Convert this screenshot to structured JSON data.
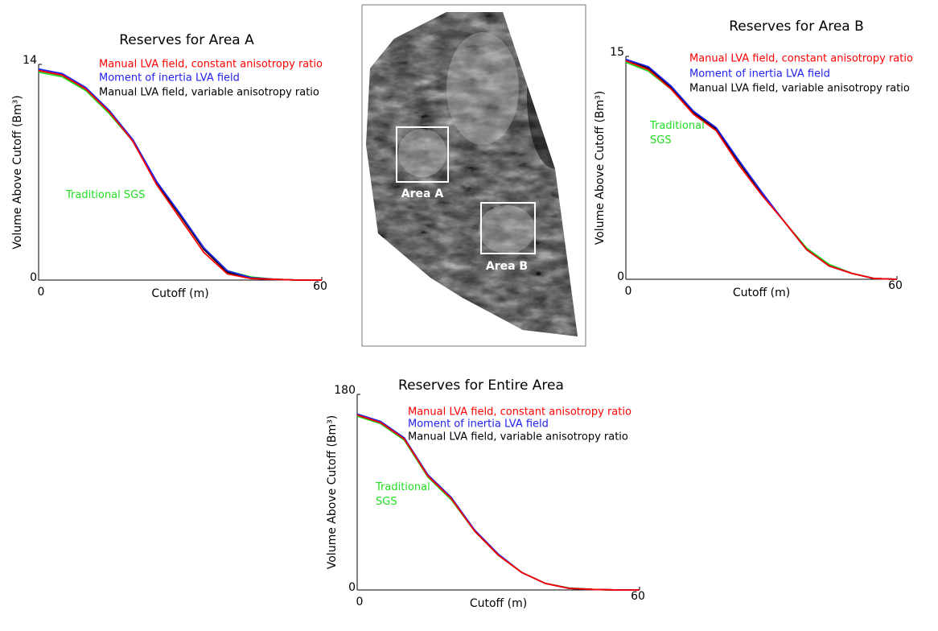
{
  "chart_data": [
    {
      "type": "line",
      "title": "Reserves for Area A",
      "x_label": "Cutoff (m)",
      "y_label": "Volume Above Cutoff (Bm³)",
      "x": [
        0,
        5,
        10,
        15,
        20,
        25,
        30,
        35,
        40,
        45,
        50,
        55,
        60
      ],
      "xlim": [
        0,
        60
      ],
      "xticks": [
        0,
        60
      ],
      "ylim": [
        0,
        14
      ],
      "yticks": [
        0,
        14
      ],
      "series": [
        {
          "name": "Manual LVA field, constant anisotropy ratio",
          "color": "#ff0000",
          "values": [
            13.6,
            13.3,
            12.4,
            10.9,
            9.0,
            6.2,
            4.0,
            1.8,
            0.4,
            0.1,
            0.05,
            0,
            0
          ]
        },
        {
          "name": "Moment of inertia LVA field",
          "color": "#2222ee",
          "values": [
            13.7,
            13.4,
            12.5,
            11.0,
            9.1,
            6.4,
            4.3,
            2.1,
            0.6,
            0.15,
            0.05,
            0,
            0
          ]
        },
        {
          "name": "Manual LVA field, variable anisotropy ratio",
          "color": "#000000",
          "values": [
            13.6,
            13.3,
            12.4,
            11.0,
            9.0,
            6.3,
            4.2,
            2.0,
            0.5,
            0.15,
            0.05,
            0,
            0
          ]
        },
        {
          "name": "Traditional SGS",
          "color": "#22dd22",
          "values": [
            13.5,
            13.2,
            12.3,
            10.8,
            9.0,
            6.3,
            4.2,
            2.1,
            0.6,
            0.2,
            0.05,
            0,
            0
          ]
        }
      ]
    },
    {
      "type": "line",
      "title": "Reserves for Area B",
      "x_label": "Cutoff (m)",
      "y_label": "Volume Above Cutoff (Bm³)",
      "x": [
        0,
        5,
        10,
        15,
        20,
        25,
        30,
        35,
        40,
        45,
        50,
        55,
        60
      ],
      "xlim": [
        0,
        60
      ],
      "xticks": [
        0,
        60
      ],
      "ylim": [
        0,
        15
      ],
      "yticks": [
        0,
        15
      ],
      "series": [
        {
          "name": "Manual LVA field, constant anisotropy ratio",
          "color": "#ff0000",
          "values": [
            14.7,
            14.1,
            12.8,
            11.1,
            10.0,
            7.7,
            5.7,
            3.9,
            2.0,
            0.9,
            0.4,
            0.05,
            0
          ]
        },
        {
          "name": "Moment of inertia LVA field",
          "color": "#2222ee",
          "values": [
            14.8,
            14.3,
            13.0,
            11.3,
            10.2,
            8.0,
            5.9,
            3.9,
            2.0,
            0.9,
            0.4,
            0.05,
            0
          ]
        },
        {
          "name": "Manual LVA field, variable anisotropy ratio",
          "color": "#000000",
          "values": [
            14.8,
            14.2,
            12.9,
            11.2,
            10.1,
            7.9,
            5.8,
            3.9,
            2.0,
            0.9,
            0.4,
            0.05,
            0
          ]
        },
        {
          "name": "Traditional SGS",
          "color": "#22dd22",
          "values": [
            14.6,
            14.0,
            12.8,
            11.2,
            10.0,
            7.9,
            5.8,
            3.9,
            2.1,
            1.0,
            0.4,
            0.05,
            0
          ]
        }
      ]
    },
    {
      "type": "line",
      "title": "Reserves for Entire Area",
      "x_label": "Cutoff (m)",
      "y_label": "Volume Above Cutoff (Bm³)",
      "x": [
        0,
        5,
        10,
        15,
        20,
        25,
        30,
        35,
        40,
        45,
        50,
        55,
        60
      ],
      "xlim": [
        0,
        60
      ],
      "xticks": [
        0,
        60
      ],
      "ylim": [
        0,
        180
      ],
      "yticks": [
        0,
        180
      ],
      "series": [
        {
          "name": "Manual LVA field, constant anisotropy ratio",
          "color": "#ff0000",
          "values": [
            161,
            154,
            139,
            105,
            84,
            54,
            32,
            16,
            6,
            1.5,
            0.5,
            0,
            0
          ]
        },
        {
          "name": "Moment of inertia LVA field",
          "color": "#2222ee",
          "values": [
            162,
            155,
            140,
            106,
            85,
            55,
            33,
            16,
            6,
            1.5,
            0.5,
            0,
            0
          ]
        },
        {
          "name": "Manual LVA field, variable anisotropy ratio",
          "color": "#000000",
          "values": [
            161,
            154,
            139,
            106,
            85,
            54,
            32,
            16,
            6,
            1.5,
            0.5,
            0,
            0
          ]
        },
        {
          "name": "Traditional SGS",
          "color": "#22dd22",
          "values": [
            160,
            153,
            138,
            104,
            83,
            54,
            32,
            16,
            6,
            1.8,
            0.5,
            0,
            0
          ]
        }
      ]
    }
  ],
  "map": {
    "area_labels": [
      "Area A",
      "Area B"
    ]
  }
}
